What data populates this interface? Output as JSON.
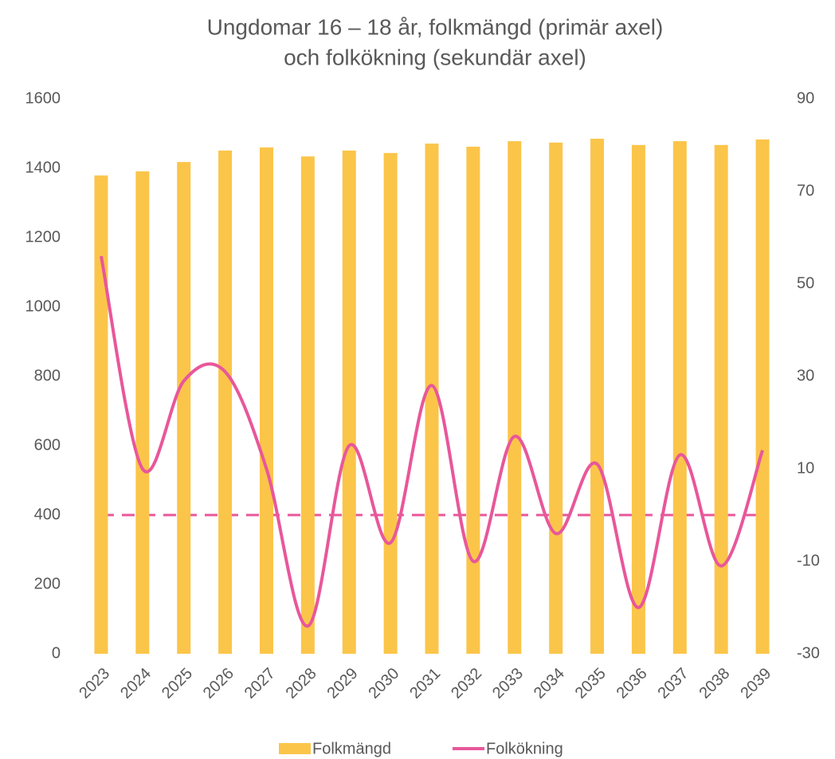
{
  "chart_data": {
    "type": "bar_line",
    "title": [
      "Ungdomar 16 – 18 år, folkmängd (primär axel)",
      "och folkökning (sekundär axel)"
    ],
    "categories": [
      "2023",
      "2024",
      "2025",
      "2026",
      "2027",
      "2028",
      "2029",
      "2030",
      "2031",
      "2032",
      "2033",
      "2034",
      "2035",
      "2036",
      "2037",
      "2038",
      "2039"
    ],
    "series": [
      {
        "name": "Folkmängd",
        "type": "bar",
        "color": "#fbc54a",
        "values": [
          1379,
          1391,
          1418,
          1451,
          1460,
          1434,
          1451,
          1444,
          1471,
          1462,
          1478,
          1474,
          1485,
          1467,
          1478,
          1467,
          1483
        ]
      },
      {
        "name": "Folkökning",
        "type": "line",
        "axis": "y2",
        "smooth": true,
        "color": "#e8579a",
        "values": [
          56,
          10,
          29,
          31,
          10,
          -24,
          15,
          -6,
          28,
          -10,
          17,
          -4,
          11,
          -20,
          13,
          -11,
          14
        ]
      }
    ],
    "y2_reference_line": 0,
    "ylim": [
      0,
      1600
    ],
    "yticks": [
      0,
      200,
      400,
      600,
      800,
      1000,
      1200,
      1400,
      1600
    ],
    "y2lim": [
      -30,
      90
    ],
    "y2ticks": [
      -30,
      -10,
      10,
      30,
      50,
      70,
      90
    ],
    "legend": "bottom",
    "grid": false
  }
}
